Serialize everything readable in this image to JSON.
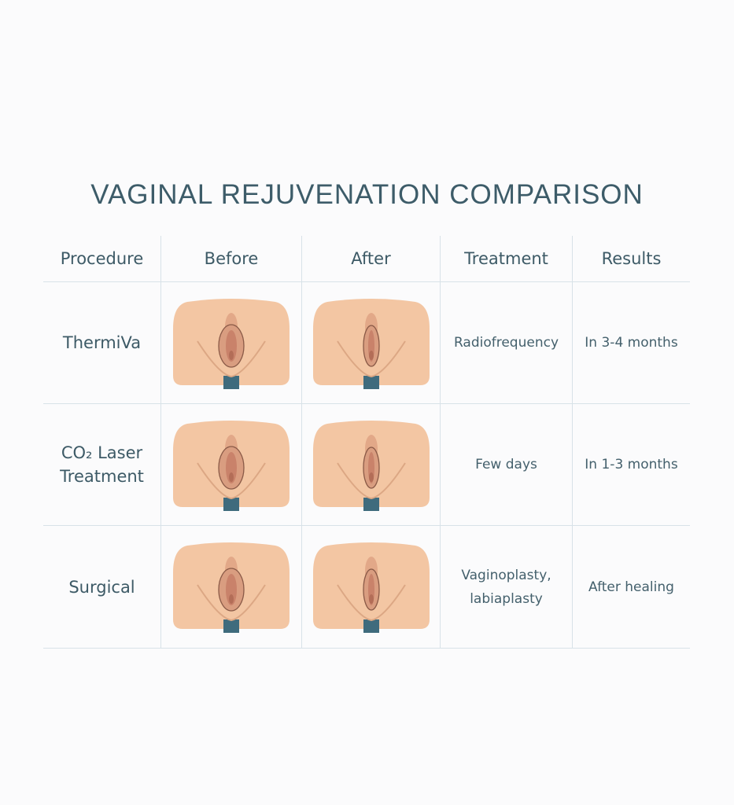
{
  "title": "VAGINAL REJUVENATION COMPARISON",
  "headers": [
    "Procedure",
    "Before",
    "After",
    "Treatment",
    "Results"
  ],
  "rows": [
    {
      "procedure": "ThermiVa",
      "procedure_line2": "",
      "treatment": "Radiofrequency",
      "treatment_line2": "",
      "results": "In 3-4 months"
    },
    {
      "procedure": "CO₂ Laser",
      "procedure_line2": "Treatment",
      "treatment": "Few days",
      "treatment_line2": "",
      "results": "In 1-3 months"
    },
    {
      "procedure": "Surgical",
      "procedure_line2": "",
      "treatment": "Vaginoplasty,",
      "treatment_line2": "labiaplasty",
      "results": "After healing"
    }
  ],
  "colors": {
    "skin": "#f3c6a3",
    "tissue": "#d99d80",
    "outline": "#8a5a47",
    "base": "#3f6b7d",
    "text": "#3d5a66",
    "grid": "#d8e2e8"
  }
}
